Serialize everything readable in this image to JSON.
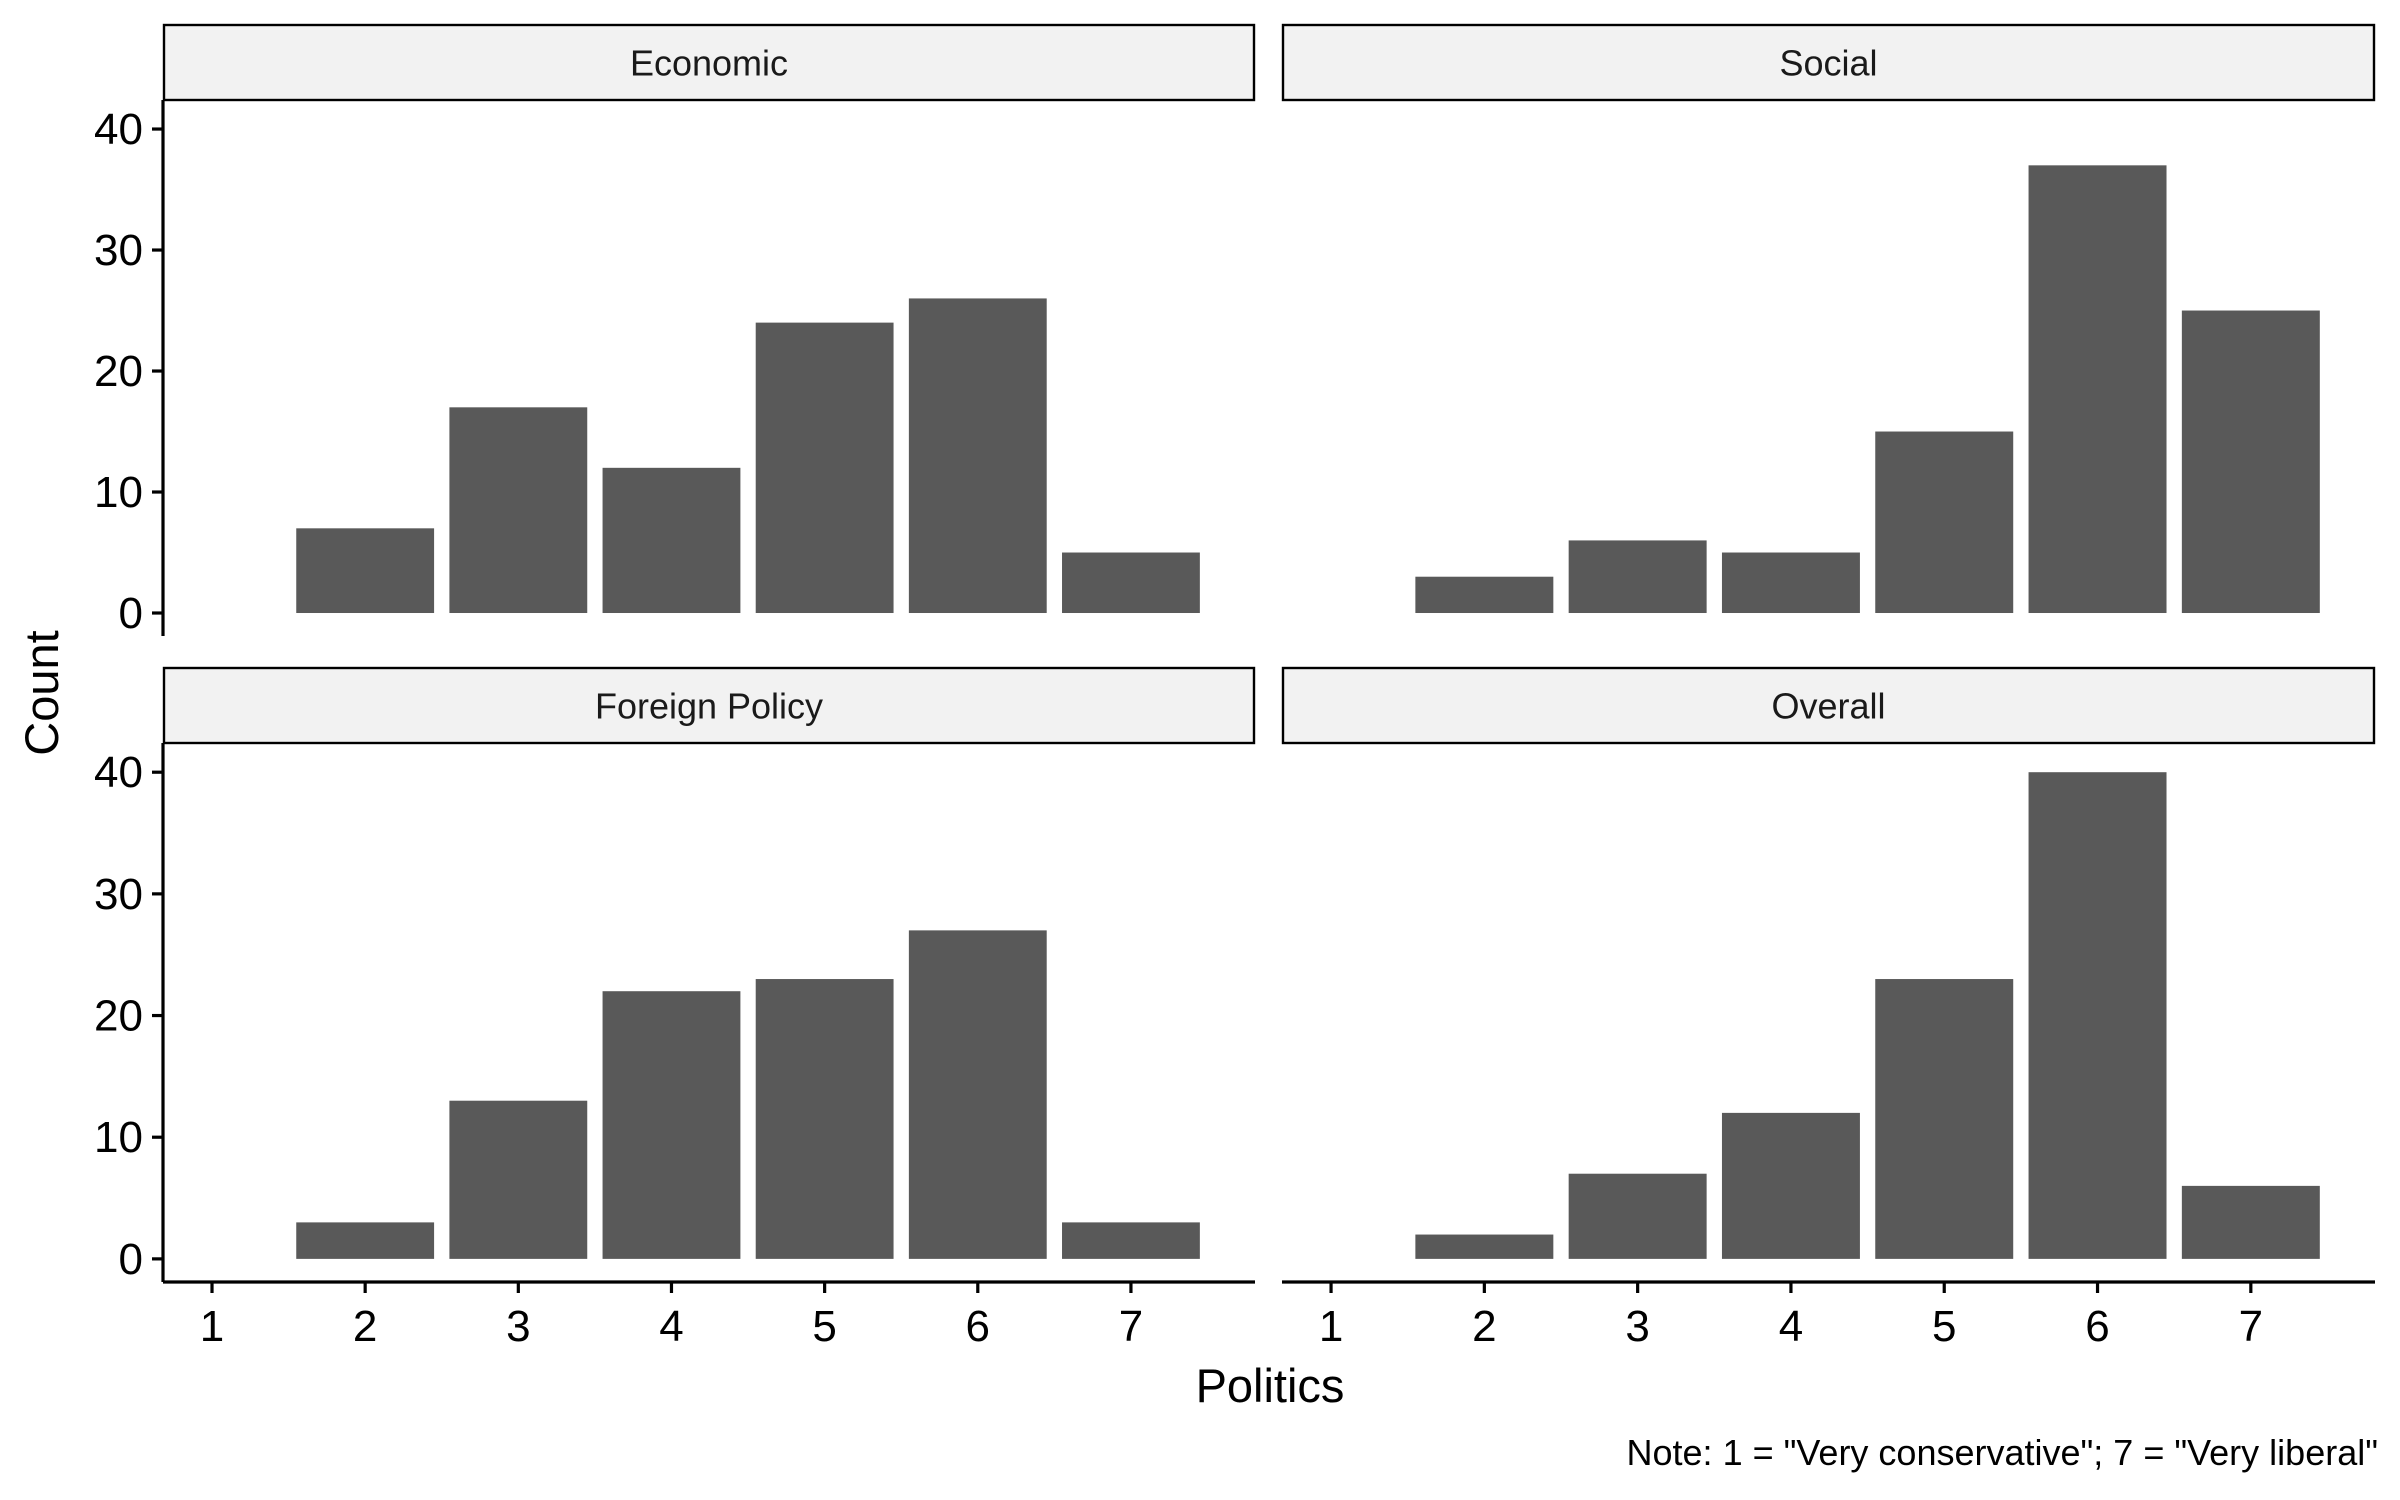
{
  "chart_data": {
    "type": "bar",
    "xlabel": "Politics",
    "ylabel": "Count",
    "caption": "Note: 1 = \"Very conservative\"; 7 = \"Very liberal\"",
    "categories": [
      1,
      2,
      3,
      4,
      5,
      6,
      7
    ],
    "x_tick_labels": [
      "1",
      "2",
      "3",
      "4",
      "5",
      "6",
      "7"
    ],
    "xlim": [
      0.68,
      7.81
    ],
    "ylim": [
      -1.9,
      42.4
    ],
    "y_ticks": [
      0,
      10,
      20,
      30,
      40
    ],
    "y_tick_labels": [
      "0",
      "10",
      "20",
      "30",
      "40"
    ],
    "bar_color": "#595959",
    "strip_color": "#f2f2f2",
    "grid": false,
    "facets": [
      {
        "title": "Economic",
        "values": [
          0,
          7,
          17,
          12,
          24,
          26,
          5
        ]
      },
      {
        "title": "Social",
        "values": [
          0,
          3,
          6,
          5,
          15,
          37,
          25
        ]
      },
      {
        "title": "Foreign Policy",
        "values": [
          0,
          3,
          13,
          22,
          23,
          27,
          3
        ]
      },
      {
        "title": "Overall",
        "values": [
          0,
          2,
          7,
          12,
          23,
          40,
          6
        ]
      }
    ]
  }
}
